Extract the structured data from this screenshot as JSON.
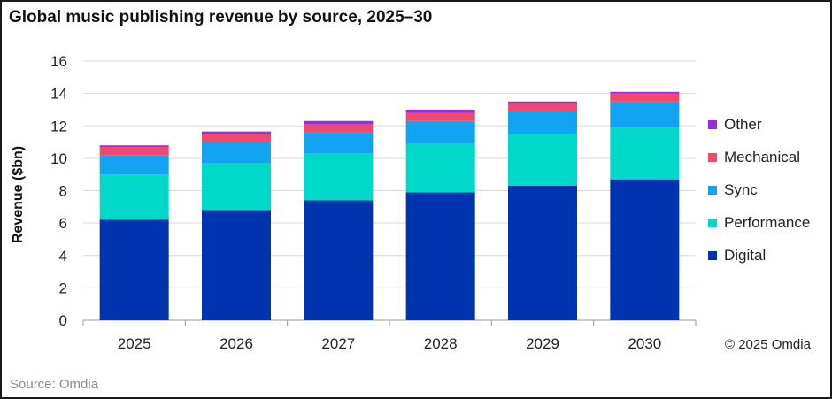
{
  "title": "Global music publishing revenue by source, 2025–30",
  "source": "Source: Omdia",
  "copyright": "© 2025 Omdia",
  "colors": {
    "Digital": "#0033b0",
    "Performance": "#00d9c9",
    "Sync": "#12a3f3",
    "Mechanical": "#f2476e",
    "Other": "#9b2be3"
  },
  "legend": [
    "Other",
    "Mechanical",
    "Sync",
    "Performance",
    "Digital"
  ],
  "chart_data": {
    "type": "bar",
    "stacked": true,
    "categories": [
      "2025",
      "2026",
      "2027",
      "2028",
      "2029",
      "2030"
    ],
    "series": [
      {
        "name": "Digital",
        "values": [
          6.2,
          6.8,
          7.4,
          7.9,
          8.3,
          8.7
        ]
      },
      {
        "name": "Performance",
        "values": [
          2.8,
          2.9,
          2.9,
          3.0,
          3.2,
          3.2
        ]
      },
      {
        "name": "Sync",
        "values": [
          1.2,
          1.3,
          1.3,
          1.4,
          1.4,
          1.6
        ]
      },
      {
        "name": "Mechanical",
        "values": [
          0.5,
          0.5,
          0.5,
          0.5,
          0.5,
          0.5
        ]
      },
      {
        "name": "Other",
        "values": [
          0.1,
          0.15,
          0.2,
          0.2,
          0.1,
          0.1
        ]
      }
    ],
    "xlabel": "",
    "ylabel": "Revenue ($bn)",
    "ylim": [
      0,
      16
    ],
    "yticks": [
      0,
      2,
      4,
      6,
      8,
      10,
      12,
      14,
      16
    ],
    "grid": true,
    "legend_position": "right"
  }
}
